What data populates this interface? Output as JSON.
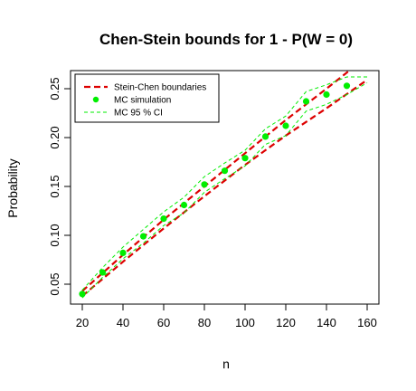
{
  "chart_data": {
    "type": "line",
    "title": "Chen-Stein bounds for 1 - P(W = 0)",
    "xlabel": "n",
    "ylabel": "Probability",
    "xlim": [
      20,
      160
    ],
    "ylim": [
      0.03,
      0.27
    ],
    "x_ticks": [
      20,
      40,
      60,
      80,
      100,
      120,
      140,
      160
    ],
    "x_tick_labels": [
      "20",
      "40",
      "60",
      "80",
      "100",
      "120",
      "140",
      "160"
    ],
    "y_ticks": [
      0.05,
      0.1,
      0.15,
      0.2,
      0.25
    ],
    "y_tick_labels": [
      "0.05",
      "0.10",
      "0.15",
      "0.20",
      "0.25"
    ],
    "grid": false,
    "legend": {
      "position": "top-left",
      "entries": [
        "Stein-Chen boundaries",
        "MC simulation",
        "MC 95 % CI"
      ]
    },
    "series": [
      {
        "name": "Stein-Chen boundaries",
        "role": "upper",
        "style": "dashed",
        "color": "#dd0000",
        "x": [
          20,
          40,
          60,
          80,
          100,
          120,
          140,
          160
        ],
        "values": [
          0.043,
          0.08,
          0.116,
          0.15,
          0.184,
          0.218,
          0.25,
          0.283
        ]
      },
      {
        "name": "Stein-Chen boundaries",
        "role": "lower",
        "style": "dashed",
        "color": "#dd0000",
        "x": [
          20,
          40,
          60,
          80,
          100,
          120,
          140,
          160
        ],
        "values": [
          0.038,
          0.073,
          0.107,
          0.14,
          0.172,
          0.202,
          0.23,
          0.259
        ]
      },
      {
        "name": "MC simulation",
        "style": "points",
        "color": "#00ee00",
        "x": [
          20,
          30,
          40,
          50,
          60,
          70,
          80,
          90,
          100,
          110,
          120,
          130,
          140,
          150
        ],
        "values": [
          0.04,
          0.062,
          0.082,
          0.099,
          0.117,
          0.131,
          0.152,
          0.166,
          0.179,
          0.201,
          0.212,
          0.237,
          0.244,
          0.253
        ]
      },
      {
        "name": "MC 95 % CI",
        "role": "upper",
        "style": "dashed",
        "color": "#00ee00",
        "x": [
          20,
          30,
          40,
          50,
          60,
          70,
          80,
          90,
          100,
          110,
          120,
          130,
          140,
          150,
          160
        ],
        "values": [
          0.044,
          0.067,
          0.088,
          0.106,
          0.124,
          0.139,
          0.16,
          0.174,
          0.187,
          0.209,
          0.222,
          0.247,
          0.254,
          0.262,
          0.262
        ]
      },
      {
        "name": "MC 95 % CI",
        "role": "lower",
        "style": "dashed",
        "color": "#00ee00",
        "x": [
          20,
          30,
          40,
          50,
          60,
          70,
          80,
          90,
          100,
          110,
          120,
          130,
          140,
          150,
          160
        ],
        "values": [
          0.036,
          0.057,
          0.076,
          0.092,
          0.11,
          0.123,
          0.144,
          0.158,
          0.171,
          0.193,
          0.202,
          0.227,
          0.234,
          0.244,
          0.256
        ]
      }
    ]
  }
}
